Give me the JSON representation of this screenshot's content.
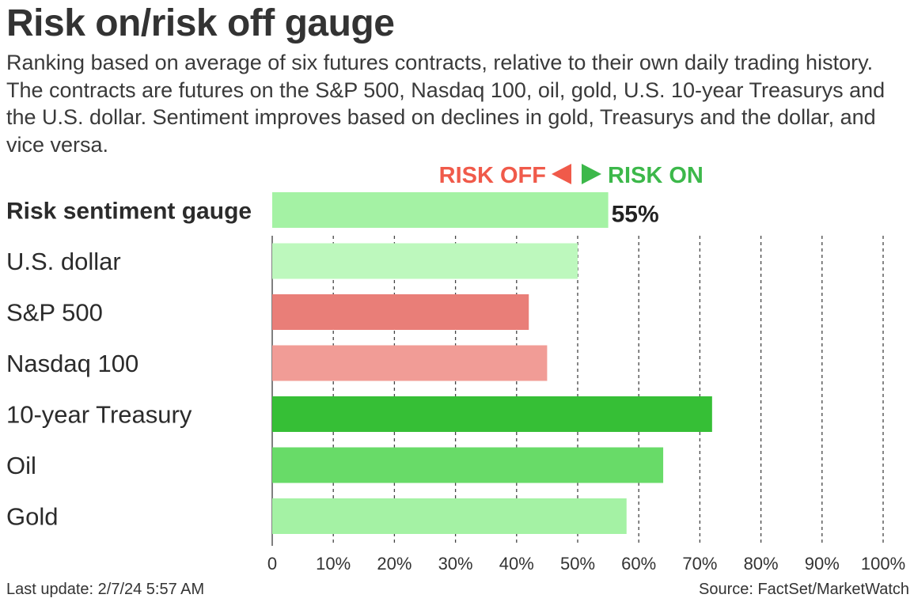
{
  "header": {
    "title": "Risk on/risk off gauge",
    "subtitle": "Ranking based on average of six futures contracts, relative to their own daily trading history. The contracts are futures on the S&P 500, Nasdaq 100, oil, gold, U.S. 10-year Treasurys and the U.S. dollar. Sentiment improves based on declines in gold, Treasurys and the dollar, and vice versa."
  },
  "legend": {
    "risk_off_label": "RISK OFF",
    "risk_on_label": "RISK ON",
    "risk_off_color": "#f05a4a",
    "risk_on_color": "#3cb84a"
  },
  "chart_data": {
    "type": "bar",
    "orientation": "horizontal",
    "title": "Risk on/risk off gauge",
    "xlabel": "",
    "ylabel": "",
    "xlim": [
      0,
      100
    ],
    "grid": "vertical dashed",
    "ticks": [
      0,
      10,
      20,
      30,
      40,
      50,
      60,
      70,
      80,
      90,
      100
    ],
    "tick_labels": [
      "0",
      "10%",
      "20%",
      "30%",
      "40%",
      "50%",
      "60%",
      "70%",
      "80%",
      "90%",
      "100%"
    ],
    "categories": [
      "Risk sentiment gauge",
      "U.S. dollar",
      "S&P 500",
      "Nasdaq 100",
      "10-year Treasury",
      "Oil",
      "Gold"
    ],
    "values": [
      55,
      50,
      42,
      45,
      72,
      64,
      58
    ],
    "colors": [
      "#a4f2a4",
      "#bdf8bd",
      "#e97e78",
      "#f19c96",
      "#36bf36",
      "#68db68",
      "#a4f2a4"
    ],
    "highlight_label": "55%"
  },
  "footer": {
    "last_update": "Last update: 2/7/24 5:57 AM",
    "source": "Source: FactSet/MarketWatch"
  }
}
